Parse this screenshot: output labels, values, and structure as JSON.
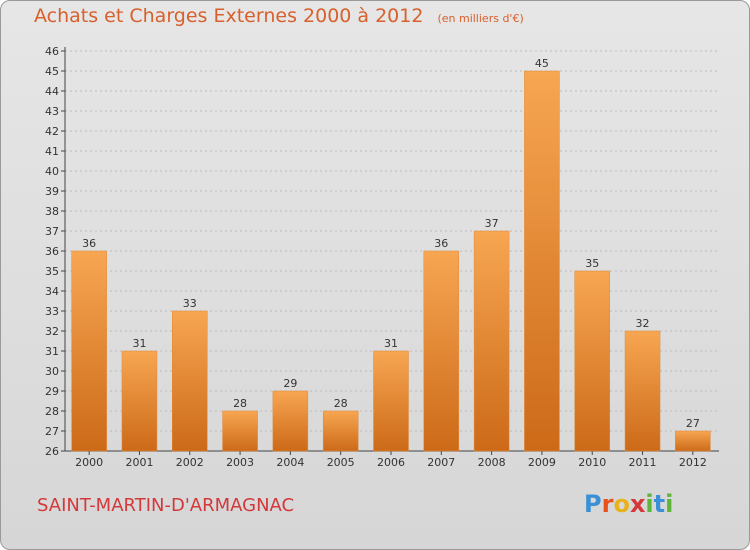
{
  "header": {
    "title": "Achats et Charges Externes 2000 à 2012",
    "unit": "(en milliers d'€)"
  },
  "footer": {
    "commune": "SAINT-MARTIN-D'ARMAGNAC",
    "logo_letters": [
      "P",
      "r",
      "o",
      "x",
      "i",
      "t",
      "i"
    ],
    "logo_colors": [
      "#3b8fd6",
      "#e8501e",
      "#e8b21e",
      "#d4383a",
      "#5fb43a",
      "#3b8fd6",
      "#5fb43a"
    ]
  },
  "colors": {
    "bar_top": "#f7a652",
    "bar_bottom": "#cc6a18",
    "axis": "#444444",
    "grid": "#bbbbbb"
  },
  "chart_data": {
    "type": "bar",
    "title": "Achats et Charges Externes 2000 à 2012",
    "categories": [
      "2000",
      "2001",
      "2002",
      "2003",
      "2004",
      "2005",
      "2006",
      "2007",
      "2008",
      "2009",
      "2010",
      "2011",
      "2012"
    ],
    "values": [
      36,
      31,
      33,
      28,
      29,
      28,
      31,
      36,
      37,
      45,
      35,
      32,
      27
    ],
    "ylim": [
      26,
      46
    ],
    "yticks": [
      26,
      27,
      28,
      29,
      30,
      31,
      32,
      33,
      34,
      35,
      36,
      37,
      38,
      39,
      40,
      41,
      42,
      43,
      44,
      45,
      46
    ],
    "grid": true,
    "legend": "none"
  }
}
